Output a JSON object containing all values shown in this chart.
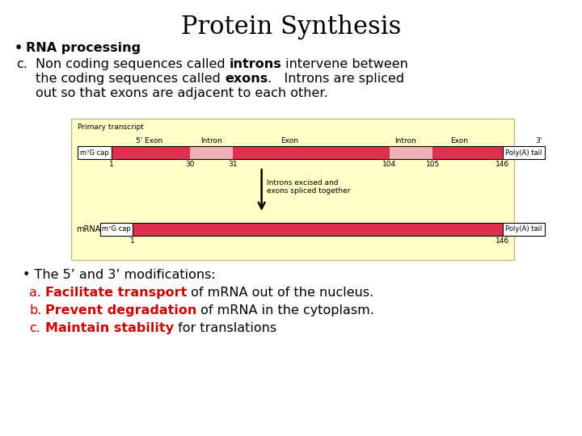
{
  "title": "Protein Synthesis",
  "bullet1": "RNA processing",
  "diagram_bg": "#FFFFC8",
  "bar_red": "#E03050",
  "bar_pink": "#F0B0B8",
  "bullet_bottom": "The 5’ and 3’ modifications:",
  "red_color": "#CC0000",
  "black_color": "#000000",
  "line_a_red": "Facilitate transport",
  "line_a_rest": " of mRNA out of the nucleus.",
  "line_b_red": "Prevent degradation",
  "line_b_rest": " of mRNA in the cytoplasm.",
  "line_c_red": "Maintain stability",
  "line_c_rest": " for translations",
  "font_title": 22,
  "font_body": 11.5,
  "font_small": 6.5
}
